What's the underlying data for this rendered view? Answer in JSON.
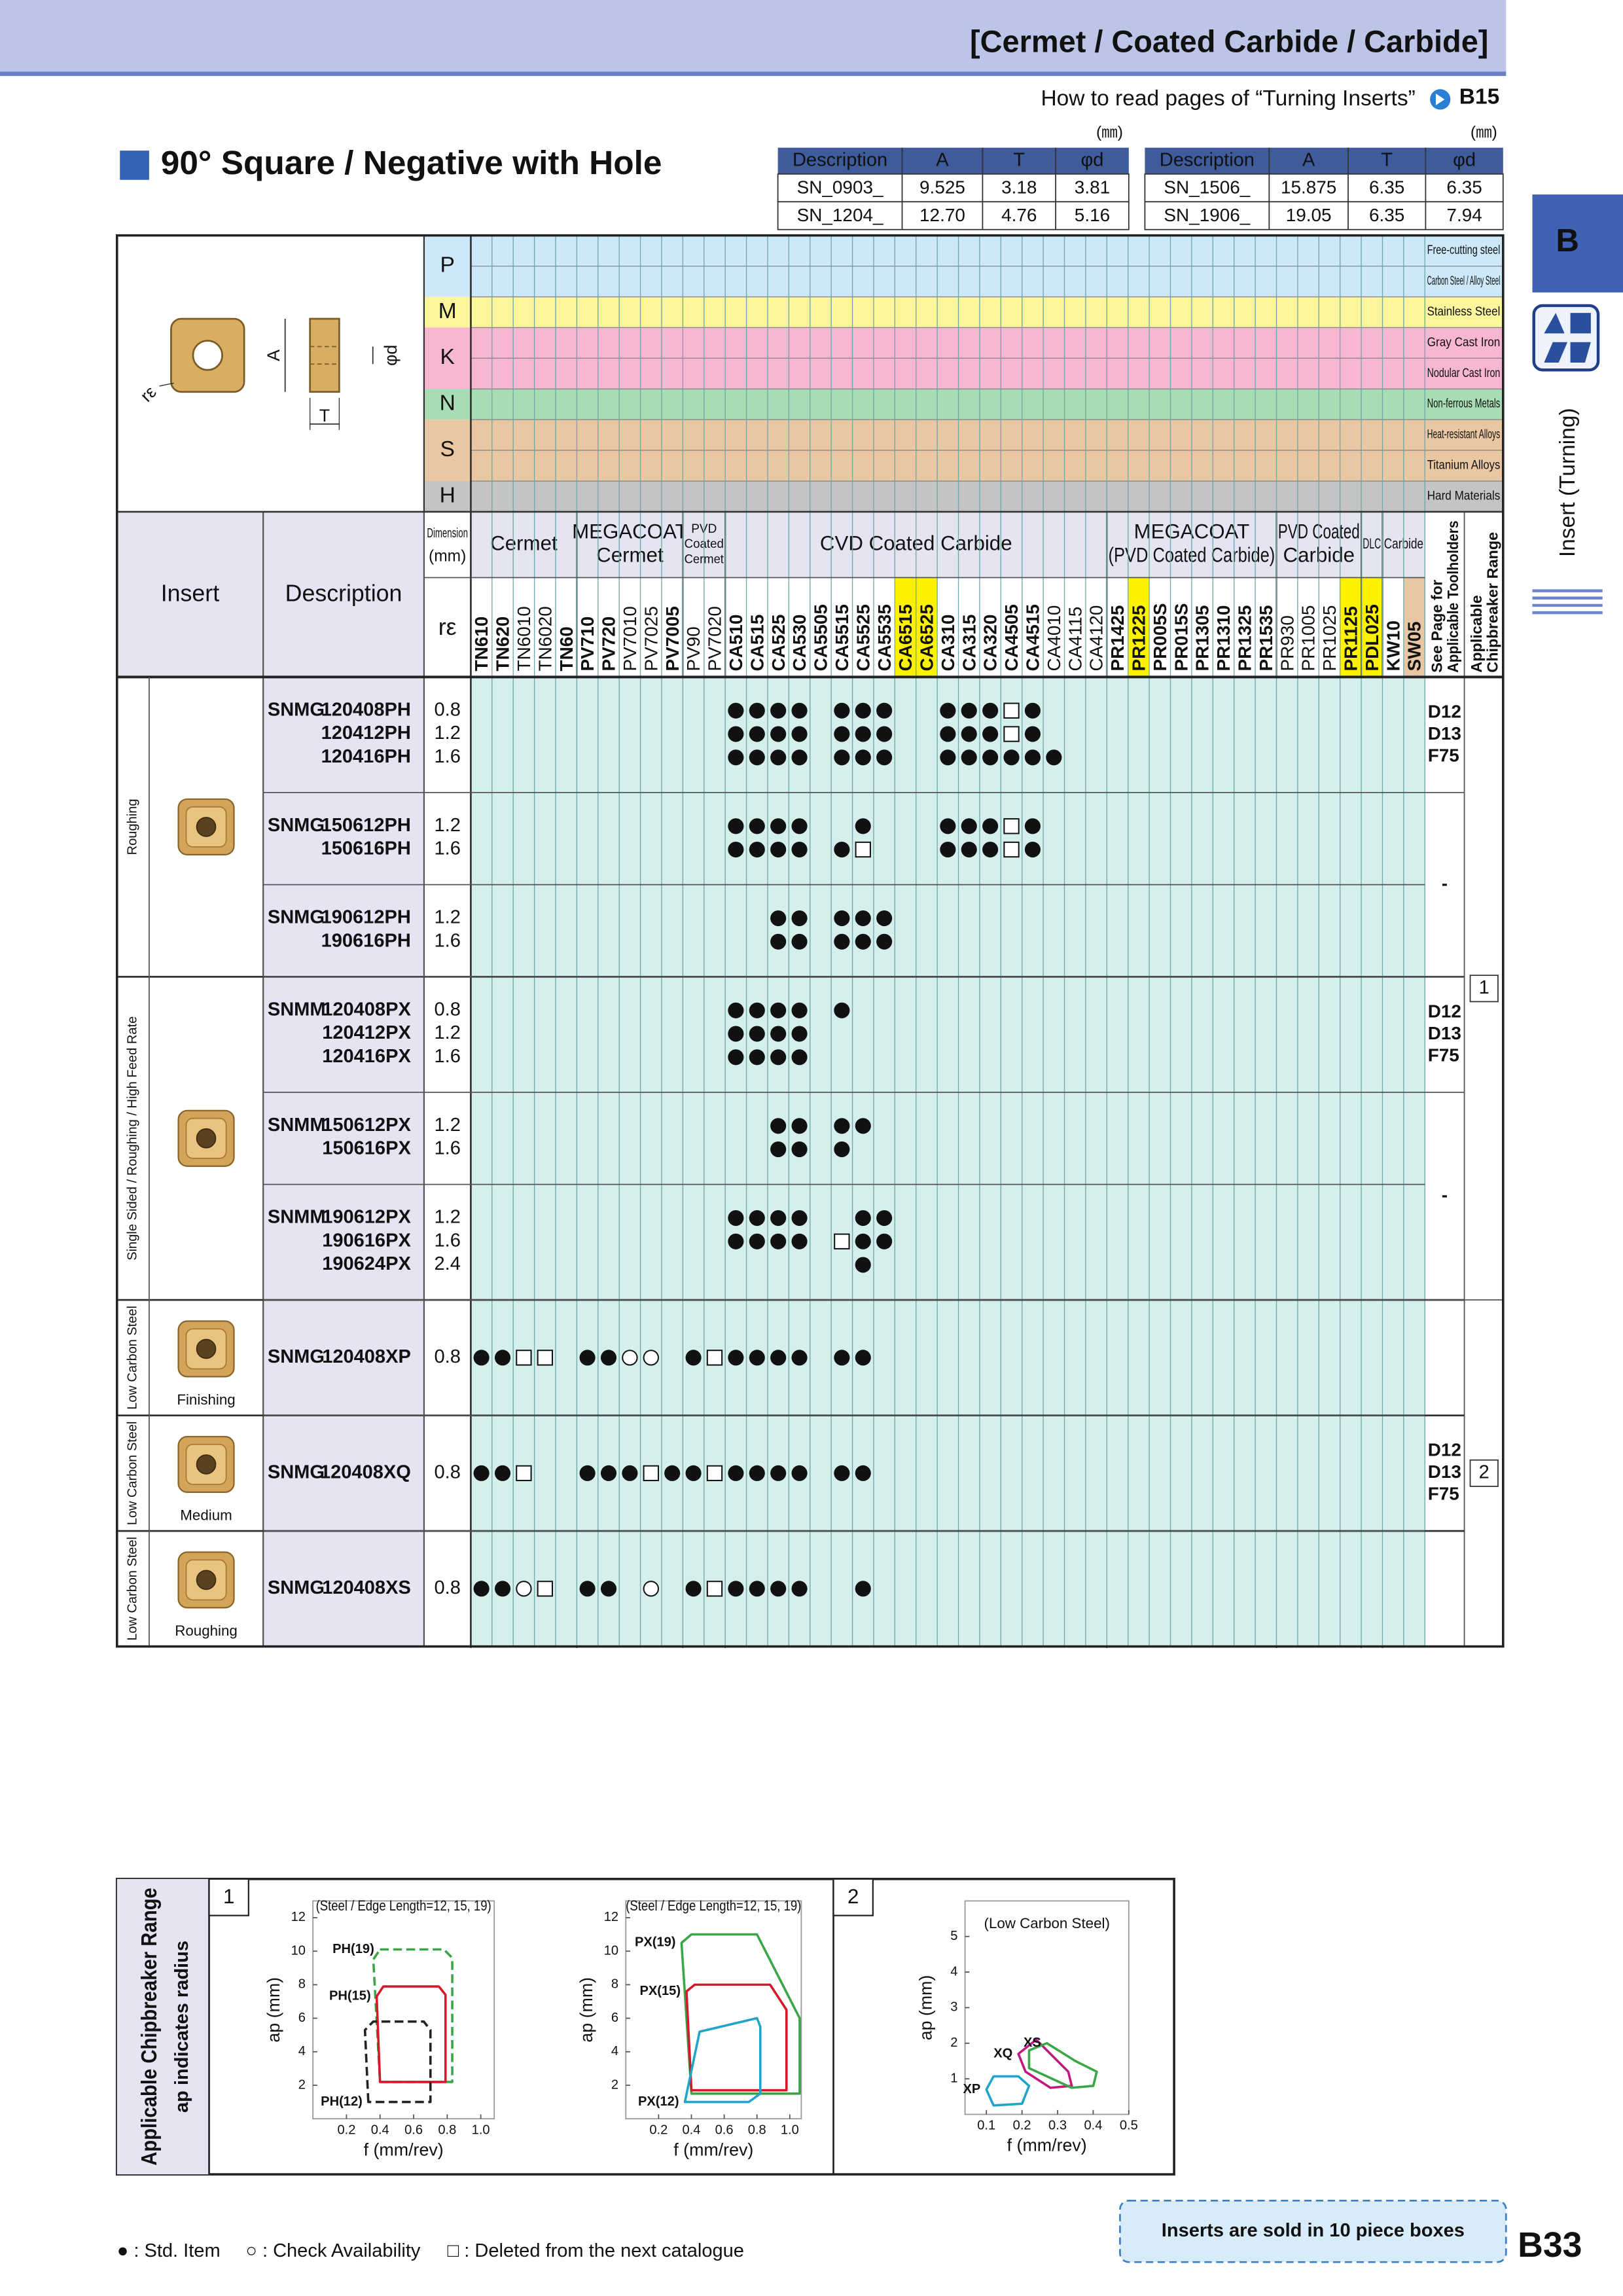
{
  "header": {
    "category": "[Cermet / Coated Carbide / Carbide]",
    "how_to_read": "How to read pages of “Turning Inserts”",
    "ref_page": "B15"
  },
  "side_tab": {
    "letter": "B",
    "label": "Insert (Turning)"
  },
  "section_title": "90° Square / Negative with Hole",
  "dimension_tables": [
    {
      "unit": "(㎜)",
      "columns": [
        "Description",
        "A",
        "T",
        "φd"
      ],
      "rows": [
        [
          "SN_0903_",
          "9.525",
          "3.18",
          "3.81"
        ],
        [
          "SN_1204_",
          "12.70",
          "4.76",
          "5.16"
        ]
      ]
    },
    {
      "unit": "(㎜)",
      "columns": [
        "Description",
        "A",
        "T",
        "φd"
      ],
      "rows": [
        [
          "SN_1506_",
          "15.875",
          "6.35",
          "6.35"
        ],
        [
          "SN_1906_",
          "19.05",
          "6.35",
          "7.94"
        ]
      ]
    }
  ],
  "drawing_labels": {
    "a": "A",
    "t": "T",
    "d": "φd",
    "re": "rε"
  },
  "materials": [
    {
      "letter": "P",
      "color": "#cde8f8",
      "rows": [
        "Free-cutting steel",
        "Carbon Steel / Alloy Steel"
      ]
    },
    {
      "letter": "M",
      "color": "#fbf59c",
      "rows": [
        "Stainless Steel"
      ]
    },
    {
      "letter": "K",
      "color": "#f7b6d2",
      "rows": [
        "Gray Cast Iron",
        "Nodular Cast Iron"
      ]
    },
    {
      "letter": "N",
      "color": "#a8dcb4",
      "rows": [
        "Non-ferrous Metals"
      ]
    },
    {
      "letter": "S",
      "color": "#e8c7a2",
      "rows": [
        "Heat-resistant Alloys",
        "Titanium Alloys"
      ]
    },
    {
      "letter": "H",
      "color": "#c4c4c4",
      "rows": [
        "Hard Materials"
      ]
    }
  ],
  "table_header": {
    "insert": "Insert",
    "description": "Description",
    "dimension": [
      "Dimension",
      "(mm)"
    ],
    "re": "rε",
    "toolholders": [
      "See Page for",
      "Applicable Toolholders"
    ],
    "chipbreaker": [
      "Applicable",
      "Chipbreaker Range"
    ]
  },
  "grade_groups": [
    {
      "name": [
        "Cermet"
      ],
      "grades": [
        {
          "name": "TN610",
          "style": "red"
        },
        {
          "name": "TN620",
          "style": "red"
        },
        {
          "name": "TN6010",
          "style": "plain"
        },
        {
          "name": "TN6020",
          "style": "plain"
        },
        {
          "name": "TN60",
          "style": "bold"
        }
      ]
    },
    {
      "name": [
        "MEGACOAT",
        "Cermet"
      ],
      "grades": [
        {
          "name": "PV710",
          "style": "red"
        },
        {
          "name": "PV720",
          "style": "red"
        },
        {
          "name": "PV7010",
          "style": "plain"
        },
        {
          "name": "PV7025",
          "style": "plain"
        },
        {
          "name": "PV7005",
          "style": "bold"
        }
      ]
    },
    {
      "name": [
        "PVD",
        "Coated",
        "Cermet"
      ],
      "grades": [
        {
          "name": "PV90",
          "style": "plain"
        },
        {
          "name": "PV7020",
          "style": "plain"
        }
      ]
    },
    {
      "name": [
        "CVD Coated Carbide"
      ],
      "grades": [
        {
          "name": "CA510",
          "style": "red"
        },
        {
          "name": "CA515",
          "style": "red"
        },
        {
          "name": "CA525",
          "style": "red"
        },
        {
          "name": "CA530",
          "style": "red"
        },
        {
          "name": "CA5505",
          "style": "bold"
        },
        {
          "name": "CA5515",
          "style": "bold"
        },
        {
          "name": "CA5525",
          "style": "bold"
        },
        {
          "name": "CA5535",
          "style": "bold"
        },
        {
          "name": "CA6515",
          "style": "yellow"
        },
        {
          "name": "CA6525",
          "style": "yellow"
        },
        {
          "name": "CA310",
          "style": "red"
        },
        {
          "name": "CA315",
          "style": "red"
        },
        {
          "name": "CA320",
          "style": "red"
        },
        {
          "name": "CA4505",
          "style": "bold"
        },
        {
          "name": "CA4515",
          "style": "bold"
        },
        {
          "name": "CA4010",
          "style": "plain"
        },
        {
          "name": "CA4115",
          "style": "plain"
        },
        {
          "name": "CA4120",
          "style": "plain"
        }
      ]
    },
    {
      "name": [
        "MEGACOAT",
        "(PVD Coated Carbide)"
      ],
      "grades": [
        {
          "name": "PR1425",
          "style": "bold"
        },
        {
          "name": "PR1225",
          "style": "yellow"
        },
        {
          "name": "PR005S",
          "style": "red"
        },
        {
          "name": "PR015S",
          "style": "red"
        },
        {
          "name": "PR1305",
          "style": "bold"
        },
        {
          "name": "PR1310",
          "style": "bold"
        },
        {
          "name": "PR1325",
          "style": "bold"
        },
        {
          "name": "PR1535",
          "style": "red"
        }
      ]
    },
    {
      "name": [
        "PVD Coated",
        "Carbide"
      ],
      "grades": [
        {
          "name": "PR930",
          "style": "plain"
        },
        {
          "name": "PR1005",
          "style": "plain"
        },
        {
          "name": "PR1025",
          "style": "plain"
        },
        {
          "name": "PR1125",
          "style": "yellow"
        }
      ]
    },
    {
      "name": [
        "DLC"
      ],
      "grades": [
        {
          "name": "PDL025",
          "style": "red-yellow"
        }
      ]
    },
    {
      "name": [
        "Carbide"
      ],
      "grades": [
        {
          "name": "KW10",
          "style": "bold"
        },
        {
          "name": "SW05",
          "style": "tan"
        }
      ]
    }
  ],
  "insert_groups": [
    {
      "application": "Roughing",
      "blocks": [
        {
          "series": "SNMG",
          "items": [
            {
              "code": "120408PH",
              "re": "0.8",
              "avail": "............oooo.ooo..ooouo.................."
            },
            {
              "code": "120412PH",
              "re": "1.2",
              "avail": "............oooo.ooo..ooouo.................."
            },
            {
              "code": "120416PH",
              "re": "1.6",
              "avail": "............oooo.ooo..oooooo................."
            }
          ]
        },
        {
          "series": "SNMG",
          "items": [
            {
              "code": "150612PH",
              "re": "1.2",
              "avail": "............oooo..o...ooouo.................."
            },
            {
              "code": "150616PH",
              "re": "1.6",
              "avail": "............oooo.ou...ooouo.................."
            }
          ]
        },
        {
          "series": "SNMG",
          "items": [
            {
              "code": "190612PH",
              "re": "1.2",
              "avail": "..............oo.ooo........................."
            },
            {
              "code": "190616PH",
              "re": "1.6",
              "avail": "..............oo.ooo........................."
            }
          ]
        }
      ]
    },
    {
      "application": "Single Sided / Roughing / High Feed Rate",
      "blocks": [
        {
          "series": "SNMM",
          "items": [
            {
              "code": "120408PX",
              "re": "0.8",
              "avail": "............oooo.o..........................."
            },
            {
              "code": "120412PX",
              "re": "1.2",
              "avail": "............oooo............................."
            },
            {
              "code": "120416PX",
              "re": "1.6",
              "avail": "............oooo............................."
            }
          ]
        },
        {
          "series": "SNMM",
          "items": [
            {
              "code": "150612PX",
              "re": "1.2",
              "avail": "..............oo.oo.........................."
            },
            {
              "code": "150616PX",
              "re": "1.6",
              "avail": "..............oo.o..........................."
            }
          ]
        },
        {
          "series": "SNMM",
          "items": [
            {
              "code": "190612PX",
              "re": "1.2",
              "avail": "............oooo..oo........................."
            },
            {
              "code": "190616PX",
              "re": "1.6",
              "avail": "............oooo.uoo........................."
            },
            {
              "code": "190624PX",
              "re": "2.4",
              "avail": "..................o.........................."
            }
          ]
        }
      ]
    },
    {
      "application": "Low Carbon Steel",
      "insert_label": "Finishing",
      "blocks": [
        {
          "series": "SNMG",
          "items": [
            {
              "code": "120408XP",
              "re": "0.8",
              "avail": "oouu.oocc.ouoooo.oo.........................."
            }
          ]
        }
      ]
    },
    {
      "application": "Low Carbon Steel",
      "insert_label": "Medium",
      "blocks": [
        {
          "series": "SNMG",
          "items": [
            {
              "code": "120408XQ",
              "re": "0.8",
              "avail": "oou..ooouoouoooo.oo.........................."
            }
          ]
        }
      ]
    },
    {
      "application": "Low Carbon Steel",
      "insert_label": "Roughing",
      "blocks": [
        {
          "series": "SNMG",
          "items": [
            {
              "code": "120408XS",
              "re": "0.8",
              "avail": "oocu.oo.c.ouoooo..o.........................."
            }
          ]
        }
      ]
    }
  ],
  "toolholder_cells": [
    {
      "blocks": [
        0,
        0
      ],
      "lines": [
        "D12",
        "D13",
        "F75"
      ]
    },
    {
      "blocks": [
        1,
        2
      ],
      "lines": [
        "-"
      ]
    },
    {
      "blocks": [
        3,
        3
      ],
      "lines": [
        "D12",
        "D13",
        "F75"
      ]
    },
    {
      "blocks": [
        4,
        5
      ],
      "lines": [
        "-"
      ]
    },
    {
      "blocks": [
        6,
        8
      ],
      "lines": [
        "D12",
        "D13",
        "F75"
      ]
    }
  ],
  "chipbreaker_cells": [
    {
      "blocks": [
        0,
        5
      ],
      "text": "1"
    },
    {
      "blocks": [
        6,
        8
      ],
      "text": "2"
    }
  ],
  "chart_panel": {
    "title": "Applicable Chipbreaker Range",
    "note": "ap indicates radius",
    "panels": [
      {
        "number": "1",
        "charts": [
          {
            "subtitle": "(Steel / Edge Length=12, 15, 19)",
            "x_label": "f (mm/rev)",
            "y_label": "ap (mm)",
            "xlim": [
              0,
              1.08
            ],
            "ylim": [
              0,
              13
            ],
            "xticks": [
              0.2,
              0.4,
              0.6,
              0.8,
              {
                "value": 1,
                "label": "1.0"
              }
            ],
            "yticks": [
              2,
              4,
              6,
              8,
              10,
              12
            ],
            "regions": [
              {
                "name": "PH(19)",
                "color": "#3aa645",
                "dashed": true,
                "f": [
                  0.4,
                  0.78,
                  0.83,
                  0.83,
                  0.4,
                  0.36
                ],
                "ap": [
                  10.1,
                  10.1,
                  9.6,
                  2.2,
                  2.2,
                  9.5
                ]
              },
              {
                "name": "PH(15)",
                "color": "#d7182a",
                "dashed": false,
                "f": [
                  0.38,
                  0.42,
                  0.75,
                  0.79,
                  0.79,
                  0.4
                ],
                "ap": [
                  7.3,
                  7.9,
                  7.9,
                  7.4,
                  2.2,
                  2.2
                ]
              },
              {
                "name": "PH(12)",
                "color": "#222222",
                "dashed": true,
                "f": [
                  0.33,
                  0.31,
                  0.36,
                  0.66,
                  0.7,
                  0.7
                ],
                "ap": [
                  1,
                  5.3,
                  5.8,
                  5.8,
                  5.3,
                  1
                ]
              }
            ]
          },
          {
            "subtitle": "(Steel / Edge Length=12, 15, 19)",
            "x_label": "f (mm/rev)",
            "y_label": "ap (mm)",
            "xlim": [
              0,
              1.07
            ],
            "ylim": [
              0,
              13
            ],
            "xticks": [
              0.2,
              0.4,
              0.6,
              0.8,
              {
                "value": 1,
                "label": "1.0"
              }
            ],
            "yticks": [
              2,
              4,
              6,
              8,
              10,
              12
            ],
            "regions": [
              {
                "name": "PX(19)",
                "color": "#3aa645",
                "dashed": false,
                "f": [
                  0.34,
                  0.4,
                  0.8,
                  1.06,
                  1.06,
                  0.4
                ],
                "ap": [
                  10.5,
                  11,
                  11,
                  6,
                  1.5,
                  1.5
                ]
              },
              {
                "name": "PX(15)",
                "color": "#d7182a",
                "dashed": false,
                "f": [
                  0.37,
                  0.42,
                  0.88,
                  0.98,
                  0.98,
                  0.4
                ],
                "ap": [
                  7.6,
                  8,
                  8,
                  6.5,
                  1.7,
                  1.7
                ]
              },
              {
                "name": "PX(12)",
                "color": "#1fa5c8",
                "dashed": false,
                "f": [
                  0.36,
                  0.45,
                  0.8,
                  0.82,
                  0.82,
                  0.75
                ],
                "ap": [
                  1,
                  5.2,
                  6,
                  5.5,
                  1.5,
                  1
                ]
              }
            ]
          }
        ]
      },
      {
        "number": "2",
        "charts": [
          {
            "subtitle": "(Low Carbon Steel)",
            "x_label": "f (mm/rev)",
            "y_label": "ap (mm)",
            "xlim": [
              0.04,
              0.5
            ],
            "ylim": [
              0,
              6
            ],
            "xticks": [
              0.1,
              0.2,
              0.3,
              0.4,
              0.5
            ],
            "yticks": [
              1,
              2,
              3,
              4,
              5
            ],
            "regions": [
              {
                "name": "XQ",
                "color": "#c0187f",
                "dashed": false,
                "f": [
                  0.19,
                  0.24,
                  0.33,
                  0.34,
                  0.28,
                  0.21
                ],
                "ap": [
                  1.7,
                  2.1,
                  1.2,
                  0.8,
                  0.75,
                  1.2
                ]
              },
              {
                "name": "XS",
                "color": "#3aa645",
                "dashed": false,
                "f": [
                  0.27,
                  0.35,
                  0.41,
                  0.4,
                  0.34,
                  0.22,
                  0.22
                ],
                "ap": [
                  2,
                  1.5,
                  1.2,
                  0.8,
                  0.75,
                  1.3,
                  1.8
                ]
              },
              {
                "name": "XP",
                "color": "#1fa5c8",
                "dashed": false,
                "f": [
                  0.1,
                  0.12,
                  0.19,
                  0.22,
                  0.2,
                  0.12
                ],
                "ap": [
                  0.7,
                  1.07,
                  1.07,
                  0.8,
                  0.3,
                  0.25
                ]
              }
            ]
          }
        ]
      }
    ]
  },
  "legend": [
    "● : Std. Item",
    "○ : Check Availability",
    "□ : Deleted from the next catalogue"
  ],
  "note_box": "Inserts are sold in 10 piece boxes",
  "page_number": "B33"
}
